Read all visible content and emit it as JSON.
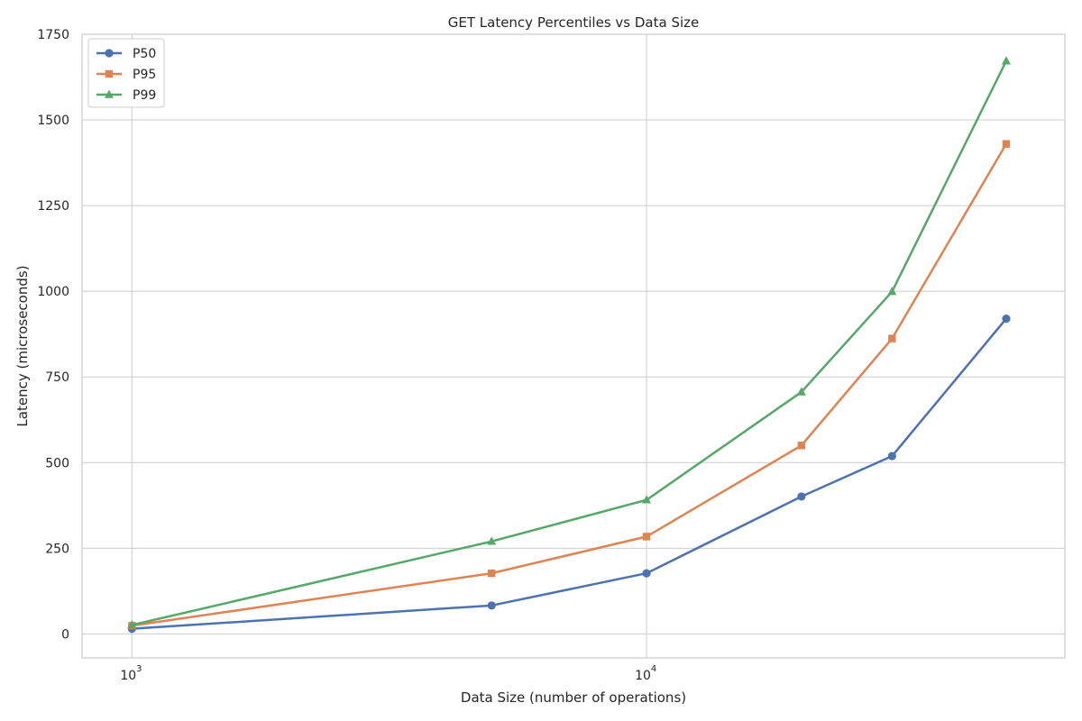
{
  "chart_data": {
    "type": "line",
    "title": "GET Latency Percentiles vs Data Size",
    "xlabel": "Data Size (number of operations)",
    "ylabel": "Latency (microseconds)",
    "x_scale": "log",
    "x": [
      1000,
      5000,
      10000,
      20000,
      30000,
      50000
    ],
    "xlim": [
      800,
      65000
    ],
    "ylim": [
      -70,
      1750
    ],
    "x_ticks": [
      1000,
      10000
    ],
    "y_ticks": [
      0,
      250,
      500,
      750,
      1000,
      1250,
      1500,
      1750
    ],
    "y_tick_labels": [
      "0",
      "250",
      "500",
      "750",
      "1000",
      "1250",
      "1500",
      "1750"
    ],
    "grid": true,
    "legend_position": "top-left",
    "series": [
      {
        "name": "P50",
        "color": "#4c72b0",
        "marker": "circle",
        "values": [
          15,
          83,
          177,
          401,
          519,
          920
        ]
      },
      {
        "name": "P95",
        "color": "#dd8452",
        "marker": "square",
        "values": [
          24,
          177,
          284,
          550,
          862,
          1430
        ]
      },
      {
        "name": "P99",
        "color": "#55a868",
        "marker": "triangle",
        "values": [
          26,
          270,
          391,
          706,
          999,
          1672
        ]
      }
    ]
  }
}
